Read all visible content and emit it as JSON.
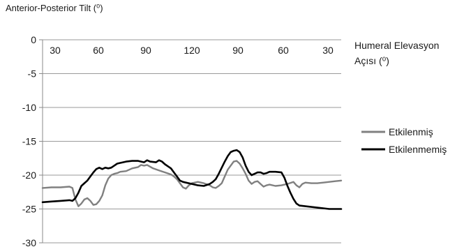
{
  "chart_data": {
    "type": "line",
    "title": "Anterior-Posterior Tilt (⁰)",
    "xlabel_line1": "Humeral Elevasyon",
    "xlabel_line2": "Açısı (⁰)",
    "x_tick_labels": [
      "30",
      "60",
      "90",
      "120",
      "90",
      "60",
      "30"
    ],
    "x_phase_range": [
      0,
      100
    ],
    "y_ticks": [
      0,
      -5,
      -10,
      -15,
      -20,
      -25,
      -30
    ],
    "ylim": [
      -30,
      0
    ],
    "grid": "horizontal",
    "legend_position": "right",
    "series": [
      {
        "name": "Etkilenmiş",
        "color": "#808080",
        "points": [
          [
            0,
            -21.9
          ],
          [
            3,
            -21.8
          ],
          [
            6,
            -21.8
          ],
          [
            9,
            -21.7
          ],
          [
            10,
            -21.9
          ],
          [
            11,
            -23.6
          ],
          [
            12,
            -24.6
          ],
          [
            13,
            -24.2
          ],
          [
            14,
            -23.6
          ],
          [
            15,
            -23.4
          ],
          [
            16,
            -23.8
          ],
          [
            17,
            -24.4
          ],
          [
            18,
            -24.3
          ],
          [
            19,
            -23.8
          ],
          [
            20,
            -23.0
          ],
          [
            21,
            -21.5
          ],
          [
            22,
            -20.5
          ],
          [
            23,
            -20.0
          ],
          [
            24,
            -19.8
          ],
          [
            25,
            -19.7
          ],
          [
            26,
            -19.5
          ],
          [
            28,
            -19.4
          ],
          [
            30,
            -19.0
          ],
          [
            32,
            -18.8
          ],
          [
            33,
            -18.5
          ],
          [
            34,
            -18.6
          ],
          [
            35,
            -18.5
          ],
          [
            37,
            -19.0
          ],
          [
            39,
            -19.3
          ],
          [
            41,
            -19.6
          ],
          [
            43,
            -19.9
          ],
          [
            44,
            -20.2
          ],
          [
            45,
            -20.6
          ],
          [
            46,
            -21.2
          ],
          [
            47,
            -21.8
          ],
          [
            48,
            -22.0
          ],
          [
            49,
            -21.5
          ],
          [
            50,
            -21.2
          ],
          [
            52,
            -21.0
          ],
          [
            54,
            -21.2
          ],
          [
            56,
            -21.5
          ],
          [
            57,
            -21.8
          ],
          [
            58,
            -21.9
          ],
          [
            59,
            -21.6
          ],
          [
            60,
            -21.2
          ],
          [
            61,
            -20.2
          ],
          [
            62,
            -19.2
          ],
          [
            63,
            -18.6
          ],
          [
            64,
            -18.0
          ],
          [
            65,
            -17.9
          ],
          [
            66,
            -18.3
          ],
          [
            67,
            -19.0
          ],
          [
            68,
            -19.8
          ],
          [
            69,
            -20.8
          ],
          [
            70,
            -21.3
          ],
          [
            71,
            -21.0
          ],
          [
            72,
            -20.9
          ],
          [
            73,
            -21.3
          ],
          [
            74,
            -21.7
          ],
          [
            75,
            -21.5
          ],
          [
            76,
            -21.4
          ],
          [
            78,
            -21.6
          ],
          [
            80,
            -21.5
          ],
          [
            82,
            -21.3
          ],
          [
            84,
            -21.0
          ],
          [
            85,
            -21.5
          ],
          [
            86,
            -21.8
          ],
          [
            87,
            -21.3
          ],
          [
            88,
            -21.1
          ],
          [
            90,
            -21.2
          ],
          [
            92,
            -21.2
          ],
          [
            94,
            -21.1
          ],
          [
            96,
            -21.0
          ],
          [
            98,
            -20.9
          ],
          [
            100,
            -20.8
          ]
        ]
      },
      {
        "name": "Etkilenmemiş",
        "color": "#000000",
        "points": [
          [
            0,
            -24.0
          ],
          [
            3,
            -23.9
          ],
          [
            6,
            -23.8
          ],
          [
            9,
            -23.7
          ],
          [
            10,
            -23.8
          ],
          [
            11,
            -23.4
          ],
          [
            12,
            -22.6
          ],
          [
            13,
            -21.6
          ],
          [
            14,
            -21.2
          ],
          [
            15,
            -20.8
          ],
          [
            16,
            -20.2
          ],
          [
            17,
            -19.6
          ],
          [
            18,
            -19.1
          ],
          [
            19,
            -18.9
          ],
          [
            20,
            -19.1
          ],
          [
            21,
            -18.9
          ],
          [
            22,
            -19.0
          ],
          [
            23,
            -18.9
          ],
          [
            24,
            -18.6
          ],
          [
            25,
            -18.3
          ],
          [
            26,
            -18.2
          ],
          [
            28,
            -18.0
          ],
          [
            30,
            -17.9
          ],
          [
            32,
            -17.9
          ],
          [
            34,
            -18.1
          ],
          [
            35,
            -17.8
          ],
          [
            36,
            -18.0
          ],
          [
            38,
            -18.1
          ],
          [
            39,
            -17.8
          ],
          [
            40,
            -18.0
          ],
          [
            41,
            -18.4
          ],
          [
            42,
            -18.7
          ],
          [
            43,
            -19.0
          ],
          [
            44,
            -19.6
          ],
          [
            45,
            -20.2
          ],
          [
            46,
            -20.8
          ],
          [
            47,
            -21.0
          ],
          [
            48,
            -21.1
          ],
          [
            50,
            -21.3
          ],
          [
            52,
            -21.5
          ],
          [
            54,
            -21.6
          ],
          [
            56,
            -21.3
          ],
          [
            57,
            -21.0
          ],
          [
            58,
            -20.6
          ],
          [
            59,
            -19.8
          ],
          [
            60,
            -18.9
          ],
          [
            61,
            -18.0
          ],
          [
            62,
            -17.2
          ],
          [
            63,
            -16.6
          ],
          [
            64,
            -16.4
          ],
          [
            65,
            -16.3
          ],
          [
            66,
            -16.6
          ],
          [
            67,
            -17.4
          ],
          [
            68,
            -18.6
          ],
          [
            69,
            -19.5
          ],
          [
            70,
            -20.0
          ],
          [
            71,
            -19.8
          ],
          [
            72,
            -19.6
          ],
          [
            73,
            -19.6
          ],
          [
            74,
            -19.8
          ],
          [
            75,
            -19.7
          ],
          [
            76,
            -19.5
          ],
          [
            78,
            -19.5
          ],
          [
            80,
            -19.6
          ],
          [
            81,
            -20.4
          ],
          [
            82,
            -21.6
          ],
          [
            83,
            -22.6
          ],
          [
            84,
            -23.5
          ],
          [
            85,
            -24.2
          ],
          [
            86,
            -24.5
          ],
          [
            88,
            -24.6
          ],
          [
            90,
            -24.7
          ],
          [
            92,
            -24.8
          ],
          [
            94,
            -24.9
          ],
          [
            96,
            -25.0
          ],
          [
            98,
            -25.0
          ],
          [
            100,
            -25.0
          ]
        ]
      }
    ]
  }
}
